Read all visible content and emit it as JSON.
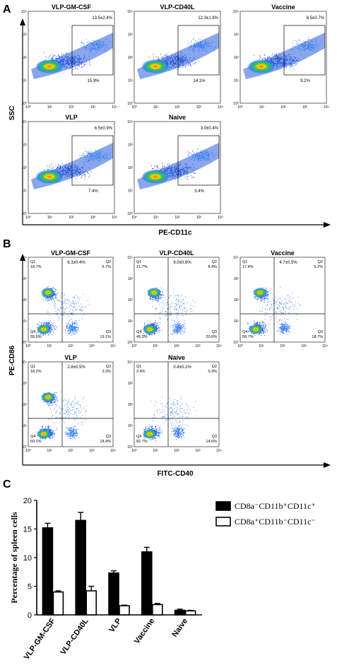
{
  "panelA": {
    "label": "A",
    "x_axis_label": "PE-CD11c",
    "y_axis_label": "SSC",
    "ticks": [
      "10⁰",
      "10¹",
      "10²",
      "10³",
      "10⁴"
    ],
    "plots": [
      {
        "title": "VLP-GM-CSF",
        "upper": "13.5±2.4%",
        "lower": "15.9%"
      },
      {
        "title": "VLP-CD40L",
        "upper": "12.3±1.8%",
        "lower": "14.1%"
      },
      {
        "title": "Vaccine",
        "upper": "8.5±0.7%",
        "lower": "9.2%"
      },
      {
        "title": "VLP",
        "upper": "6.5±0.9%",
        "lower": "7.4%"
      },
      {
        "title": "Naive",
        "upper": "3.0±0.4%",
        "lower": "3.4%"
      }
    ]
  },
  "panelB": {
    "label": "B",
    "x_axis_label": "FITC-CD40",
    "y_axis_label": "PE-CD86",
    "ticks": [
      "10⁰",
      "10¹",
      "10²",
      "10³",
      "10⁴"
    ],
    "plots": [
      {
        "title": "VLP-GM-CSF",
        "mean": "6.3±0.4%",
        "q1": "Q1\n18.7%",
        "q2": "Q2\n6.7%",
        "q3": "Q3\n19.1%",
        "q4": "Q4\n55.5%"
      },
      {
        "title": "VLP-CD40L",
        "mean": "9.0±0.6%",
        "q1": "Q1\n21.7%",
        "q2": "Q2\n8.4%",
        "q3": "Q3\n20.6%",
        "q4": "Q4\n49.3%"
      },
      {
        "title": "Vaccine",
        "mean": "4.7±0.5%",
        "q1": "Q1\n17.4%",
        "q2": "Q2\n5.2%",
        "q3": "Q3\n18.7%",
        "q4": "Q4\n58.7%"
      },
      {
        "title": "VLP",
        "mean": "2.8±0.5%",
        "q1": "Q1\n18.2%",
        "q2": "Q2\n3.3%",
        "q3": "Q3\n18.4%",
        "q4": "Q4\n60.1%"
      },
      {
        "title": "Naive",
        "mean": "0.4±0.1%",
        "q1": "Q1\n2.4%",
        "q2": "Q2\n0.3%",
        "q3": "Q3\n14.6%",
        "q4": "Q4\n82.7%"
      }
    ]
  },
  "panelC": {
    "label": "C"
  },
  "chart_data": {
    "type": "bar",
    "categories": [
      "VLP-GM-CSF",
      "VLP-CD40L",
      "VLP",
      "Vaccine",
      "Naive"
    ],
    "ylabel": "Percentage of spleen cells",
    "ylim": [
      0,
      20
    ],
    "yticks": [
      "0",
      "5",
      "10",
      "15",
      "20"
    ],
    "legend_position": "right",
    "series": [
      {
        "name": "CD8a⁻CD11b⁺CD11c⁺",
        "fill": "#000000",
        "values": [
          15.2,
          16.5,
          7.3,
          11.0,
          0.8
        ],
        "errors": [
          0.8,
          1.4,
          0.4,
          0.8,
          0.2
        ]
      },
      {
        "name": "CD8a⁺CD11b⁻CD11c⁻",
        "fill": "#ffffff",
        "values": [
          4.0,
          4.2,
          1.6,
          1.8,
          0.7
        ],
        "errors": [
          0.2,
          0.8,
          0.1,
          0.2,
          0.1
        ]
      }
    ]
  }
}
